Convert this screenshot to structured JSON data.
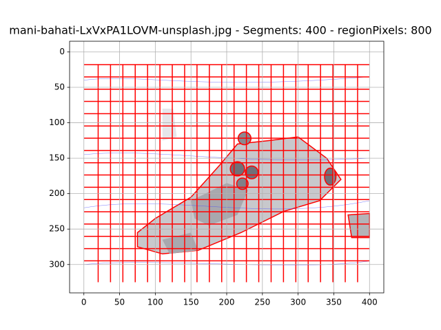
{
  "chart_data": {
    "type": "image",
    "title": "mani-bahati-LxVxPA1LOVM-unsplash.jpg - Segments: 400 - regionPixels: 800",
    "xlim": [
      -20,
      420
    ],
    "ylim": [
      340,
      -15
    ],
    "xticks": [
      0,
      50,
      100,
      150,
      200,
      250,
      300,
      350,
      400
    ],
    "yticks": [
      0,
      50,
      100,
      150,
      200,
      250,
      300
    ],
    "grid": true
  }
}
